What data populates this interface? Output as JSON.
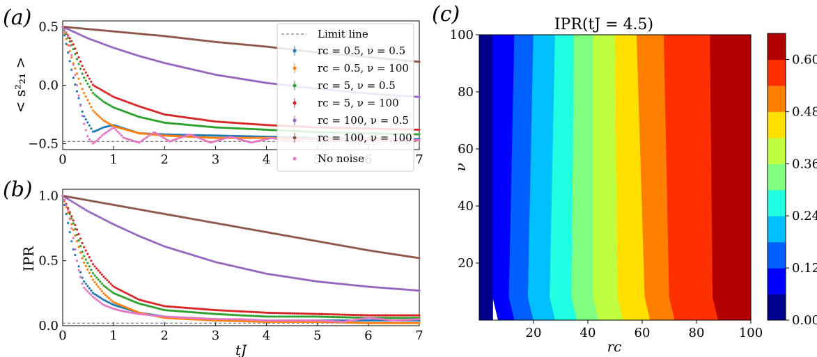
{
  "panel_labels": [
    "(a)",
    "(b)",
    "(c)"
  ],
  "colors": {
    "rc0.5_nu0.5": "#1f77b4",
    "rc0.5_nu100": "#ff7f0e",
    "rc5_nu0.5": "#2ca02c",
    "rc5_nu100": "#d62728",
    "rc100_nu0.5": "#9467bd",
    "rc100_nu100": "#8c564b",
    "no_noise": "#e377c2",
    "limit": "#555555"
  },
  "chart_data": [
    {
      "id": "a",
      "type": "scatter",
      "panel": "(a)",
      "ylabel": "< s²₂₁ >",
      "xlabel": "",
      "xlim": [
        0,
        7
      ],
      "ylim": [
        -0.55,
        0.55
      ],
      "xticks": [
        "0",
        "1",
        "2",
        "3",
        "4",
        "5",
        "6",
        "7"
      ],
      "yticks": [
        "0.5",
        "0.0",
        "−0.5"
      ],
      "ytick_values": [
        0.5,
        0.0,
        -0.5
      ],
      "limit_line": -0.48,
      "legend": {
        "placement": "top-right",
        "entries": [
          "Limit line",
          "rc = 0.5, ν = 0.5",
          "rc = 0.5, ν = 100",
          "rc = 5, ν = 0.5",
          "rc = 5, ν = 100",
          "rc = 100, ν = 0.5",
          "rc = 100, ν = 100",
          "No noise"
        ]
      },
      "series": [
        {
          "name": "rc = 0.5, ν = 0.5",
          "color_key": "rc0.5_nu0.5",
          "x": [
            0,
            0.2,
            0.4,
            0.6,
            0.8,
            1,
            1.5,
            2,
            3,
            4,
            5,
            6,
            7
          ],
          "y": [
            0.5,
            0.08,
            -0.25,
            -0.4,
            -0.36,
            -0.34,
            -0.41,
            -0.42,
            -0.43,
            -0.44,
            -0.45,
            -0.46,
            -0.46
          ]
        },
        {
          "name": "rc = 0.5, ν = 100",
          "color_key": "rc0.5_nu100",
          "x": [
            0,
            0.2,
            0.4,
            0.6,
            0.8,
            1,
            1.5,
            2,
            3,
            4,
            5,
            6,
            7
          ],
          "y": [
            0.5,
            0.2,
            -0.05,
            -0.22,
            -0.3,
            -0.35,
            -0.41,
            -0.43,
            -0.45,
            -0.45,
            -0.46,
            -0.46,
            -0.47
          ]
        },
        {
          "name": "rc = 5, ν = 0.5",
          "color_key": "rc5_nu0.5",
          "x": [
            0,
            0.2,
            0.4,
            0.6,
            0.8,
            1,
            1.5,
            2,
            3,
            4,
            5,
            6,
            7
          ],
          "y": [
            0.5,
            0.32,
            0.08,
            -0.07,
            -0.14,
            -0.19,
            -0.27,
            -0.32,
            -0.36,
            -0.38,
            -0.4,
            -0.41,
            -0.42
          ]
        },
        {
          "name": "rc = 5, ν = 100",
          "color_key": "rc5_nu100",
          "x": [
            0,
            0.2,
            0.4,
            0.6,
            0.8,
            1,
            1.5,
            2,
            3,
            4,
            5,
            6,
            7
          ],
          "y": [
            0.5,
            0.36,
            0.15,
            0.0,
            -0.05,
            -0.1,
            -0.18,
            -0.25,
            -0.31,
            -0.34,
            -0.36,
            -0.37,
            -0.38
          ]
        },
        {
          "name": "rc = 100, ν = 0.5",
          "color_key": "rc100_nu0.5",
          "x": [
            0,
            0.5,
            1,
            1.5,
            2,
            3,
            4,
            5,
            6,
            7
          ],
          "y": [
            0.5,
            0.4,
            0.32,
            0.25,
            0.19,
            0.09,
            0.02,
            -0.03,
            -0.07,
            -0.1
          ]
        },
        {
          "name": "rc = 100, ν = 100",
          "color_key": "rc100_nu100",
          "x": [
            0,
            1,
            2,
            3,
            4,
            5,
            6,
            7
          ],
          "y": [
            0.5,
            0.46,
            0.42,
            0.37,
            0.33,
            0.28,
            0.24,
            0.2
          ]
        },
        {
          "name": "No noise",
          "color_key": "no_noise",
          "x": [
            0,
            0.1,
            0.2,
            0.3,
            0.4,
            0.5,
            0.6,
            0.8,
            1.0,
            1.2,
            1.5,
            1.8,
            2.1,
            2.5,
            2.9,
            3.3,
            3.7,
            4.1,
            4.5,
            4.9,
            5.3,
            5.7,
            6.1,
            6.5,
            7.0
          ],
          "y": [
            0.5,
            0.43,
            0.2,
            -0.05,
            -0.3,
            -0.45,
            -0.5,
            -0.42,
            -0.36,
            -0.45,
            -0.49,
            -0.4,
            -0.48,
            -0.42,
            -0.49,
            -0.44,
            -0.49,
            -0.45,
            -0.48,
            -0.45,
            -0.48,
            -0.45,
            -0.48,
            -0.46,
            -0.47
          ]
        }
      ]
    },
    {
      "id": "b",
      "type": "scatter",
      "panel": "(b)",
      "ylabel": "IPR",
      "xlabel": "tJ",
      "xlim": [
        0,
        7
      ],
      "ylim": [
        0,
        1.05
      ],
      "xticks": [
        "0",
        "1",
        "2",
        "3",
        "4",
        "5",
        "6",
        "7"
      ],
      "yticks": [
        "1.0",
        "0.5",
        "0.0"
      ],
      "ytick_values": [
        1.0,
        0.5,
        0.0
      ],
      "limit_line": 0.02,
      "series": [
        {
          "name": "rc = 0.5, ν = 0.5",
          "color_key": "rc0.5_nu0.5",
          "x": [
            0,
            0.2,
            0.4,
            0.6,
            0.8,
            1,
            1.5,
            2,
            3,
            4,
            5,
            6,
            7
          ],
          "y": [
            1.0,
            0.6,
            0.35,
            0.25,
            0.2,
            0.16,
            0.1,
            0.07,
            0.05,
            0.04,
            0.04,
            0.04,
            0.04
          ]
        },
        {
          "name": "rc = 0.5, ν = 100",
          "color_key": "rc0.5_nu100",
          "x": [
            0,
            0.2,
            0.4,
            0.6,
            0.8,
            1,
            1.5,
            2,
            3,
            4,
            5,
            6,
            7
          ],
          "y": [
            1.0,
            0.75,
            0.5,
            0.35,
            0.25,
            0.18,
            0.1,
            0.06,
            0.04,
            0.03,
            0.03,
            0.02,
            0.02
          ]
        },
        {
          "name": "rc = 5, ν = 0.5",
          "color_key": "rc5_nu0.5",
          "x": [
            0,
            0.2,
            0.4,
            0.6,
            0.8,
            1,
            1.5,
            2,
            3,
            4,
            5,
            6,
            7
          ],
          "y": [
            1.0,
            0.8,
            0.55,
            0.4,
            0.31,
            0.25,
            0.17,
            0.12,
            0.09,
            0.07,
            0.07,
            0.06,
            0.06
          ]
        },
        {
          "name": "rc = 5, ν = 100",
          "color_key": "rc5_nu100",
          "x": [
            0,
            0.2,
            0.4,
            0.6,
            0.8,
            1,
            1.5,
            2,
            3,
            4,
            5,
            6,
            7
          ],
          "y": [
            1.0,
            0.82,
            0.62,
            0.47,
            0.38,
            0.3,
            0.2,
            0.15,
            0.12,
            0.1,
            0.09,
            0.08,
            0.08
          ]
        },
        {
          "name": "rc = 100, ν = 0.5",
          "color_key": "rc100_nu0.5",
          "x": [
            0,
            0.5,
            1,
            1.5,
            2,
            3,
            4,
            5,
            6,
            7
          ],
          "y": [
            1.0,
            0.88,
            0.78,
            0.69,
            0.61,
            0.49,
            0.4,
            0.34,
            0.3,
            0.27
          ]
        },
        {
          "name": "rc = 100, ν = 100",
          "color_key": "rc100_nu100",
          "x": [
            0,
            1,
            2,
            3,
            4,
            5,
            6,
            7
          ],
          "y": [
            1.0,
            0.93,
            0.86,
            0.79,
            0.72,
            0.65,
            0.58,
            0.52
          ]
        },
        {
          "name": "No noise",
          "color_key": "no_noise",
          "x": [
            0,
            0.1,
            0.2,
            0.3,
            0.4,
            0.5,
            0.6,
            0.8,
            1.0,
            1.2,
            1.5,
            2.0,
            2.5,
            3.0,
            3.5,
            4.0,
            4.5,
            5.0,
            5.5,
            6.0,
            6.5,
            7.0
          ],
          "y": [
            1.0,
            0.9,
            0.7,
            0.45,
            0.3,
            0.26,
            0.22,
            0.16,
            0.13,
            0.11,
            0.09,
            0.07,
            0.06,
            0.05,
            0.05,
            0.04,
            0.04,
            0.04,
            0.03,
            0.06,
            0.04,
            0.05
          ]
        }
      ]
    },
    {
      "id": "c",
      "type": "heatmap",
      "panel": "(c)",
      "title": "IPR(tJ = 4.5)",
      "xlabel": "rc",
      "ylabel": "ν",
      "xlim": [
        0,
        100
      ],
      "ylim": [
        0,
        100
      ],
      "xticks": [
        "20",
        "40",
        "60",
        "80",
        "100"
      ],
      "xtick_values": [
        20,
        40,
        60,
        80,
        100
      ],
      "yticks": [
        "20",
        "40",
        "60",
        "80",
        "100"
      ],
      "ytick_values": [
        20,
        40,
        60,
        80,
        100
      ],
      "colorbar_ticks": [
        "0.00",
        "0.12",
        "0.24",
        "0.36",
        "0.48",
        "0.60"
      ],
      "colorbar_tick_values": [
        0.0,
        0.12,
        0.24,
        0.36,
        0.48,
        0.6
      ],
      "levels": [
        0.0,
        0.06,
        0.12,
        0.18,
        0.24,
        0.3,
        0.36,
        0.42,
        0.48,
        0.54,
        0.6,
        0.66
      ],
      "level_colors": [
        "#00008f",
        "#0000ff",
        "#0060ff",
        "#00bfff",
        "#20ffdf",
        "#80ff80",
        "#bfff40",
        "#ffdf00",
        "#ff8000",
        "#ff3000",
        "#b30000"
      ],
      "boundaries_rc_top": [
        5,
        13,
        20,
        28,
        35,
        42,
        50,
        58,
        68,
        85
      ],
      "boundaries_rc_bottom": [
        5,
        11,
        18,
        26,
        34,
        42,
        51,
        61,
        70,
        86
      ]
    }
  ]
}
